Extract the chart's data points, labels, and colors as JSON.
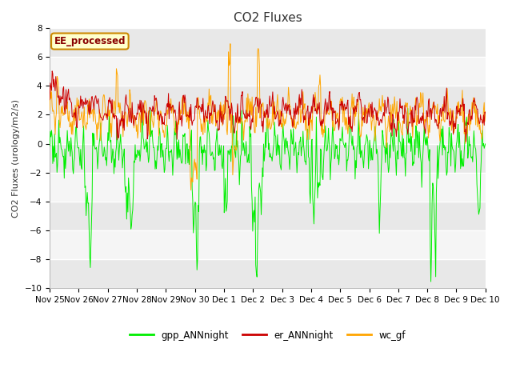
{
  "title": "CO2 Fluxes",
  "ylabel": "CO2 Fluxes (urology/m2/s)",
  "ylim": [
    -10,
    8
  ],
  "yticks": [
    -10,
    -8,
    -6,
    -4,
    -2,
    0,
    2,
    4,
    6,
    8
  ],
  "fig_bg": "#ffffff",
  "plot_bg": "#f0f0f0",
  "legend_labels": [
    "gpp_ANNnight",
    "er_ANNnight",
    "wc_gf"
  ],
  "legend_colors": [
    "#00ee00",
    "#cc0000",
    "#ffa500"
  ],
  "watermark_text": "EE_processed",
  "watermark_bg": "#ffffcc",
  "watermark_border": "#cc8800",
  "num_days": 15,
  "x_tick_labels": [
    "Nov 25",
    "Nov 26",
    "Nov 27",
    "Nov 28",
    "Nov 29",
    "Nov 30",
    "Dec 1",
    "Dec 2",
    "Dec 3",
    "Dec 4",
    "Dec 5",
    "Dec 6",
    "Dec 7",
    "Dec 8",
    "Dec 9",
    "Dec 10"
  ],
  "gpp_color": "#00ee00",
  "er_color": "#cc0000",
  "wc_color": "#ffa500",
  "line_width": 0.7,
  "title_fontsize": 11,
  "label_fontsize": 8,
  "tick_fontsize": 7.5
}
